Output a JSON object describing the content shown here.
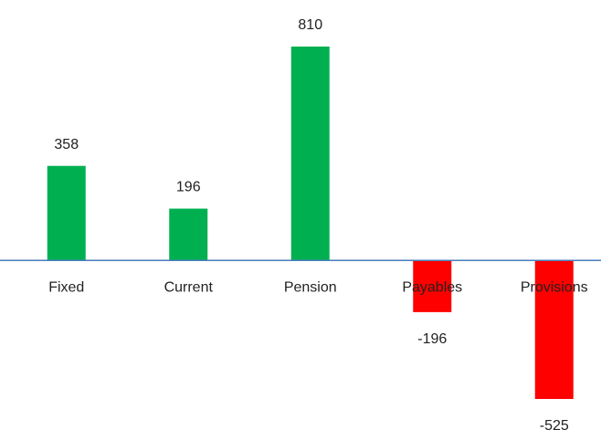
{
  "chart_data": {
    "type": "bar",
    "categories": [
      "Fixed",
      "Current",
      "Pension",
      "Payables",
      "Provisions"
    ],
    "values": [
      358,
      196,
      810,
      -196,
      -525
    ],
    "colors": [
      "#00b050",
      "#00b050",
      "#00b050",
      "#ff0000",
      "#ff0000"
    ]
  }
}
